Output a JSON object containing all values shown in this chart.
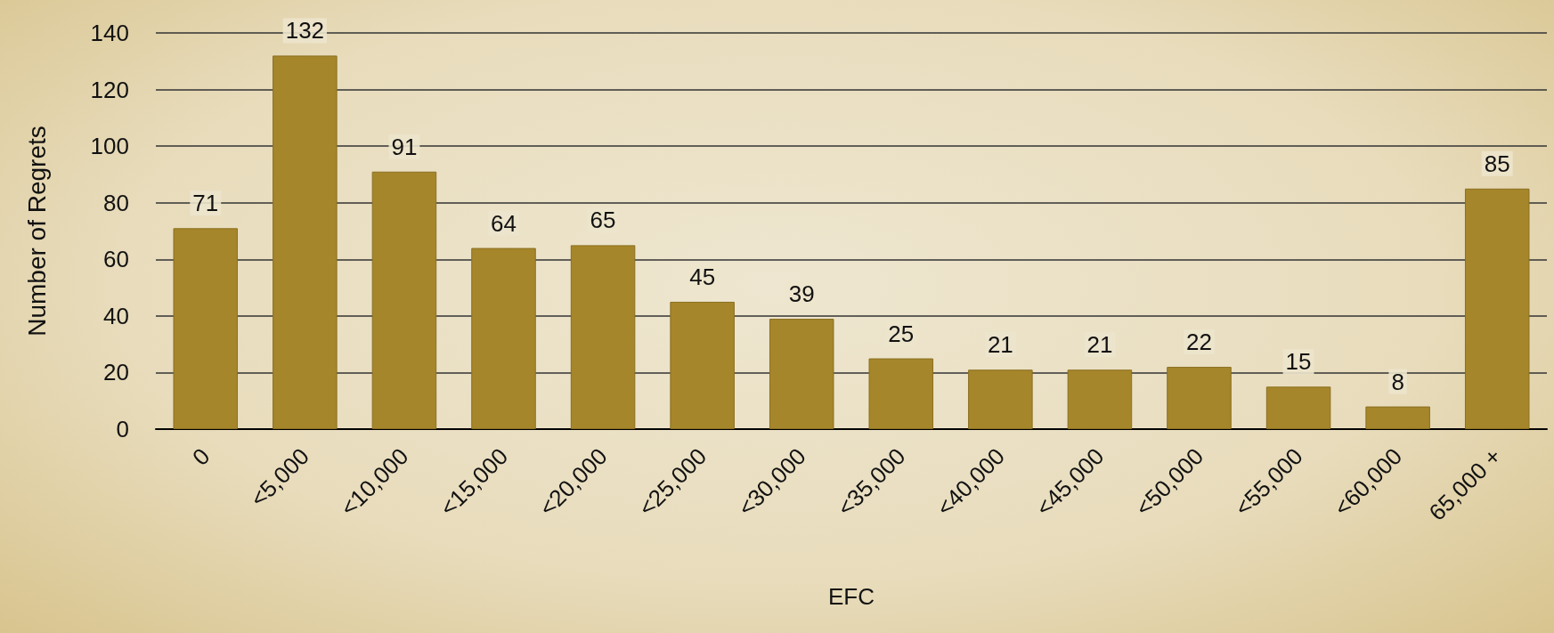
{
  "chart_data": {
    "type": "bar",
    "xlabel": "EFC",
    "ylabel": "Number of Regrets",
    "categories": [
      "0",
      "<5,000",
      "<10,000",
      "<15,000",
      "<20,000",
      "<25,000",
      "<30,000",
      "<35,000",
      "<40,000",
      "<45,000",
      "<50,000",
      "<55,000",
      "<60,000",
      "65,000 +"
    ],
    "values": [
      71,
      132,
      91,
      64,
      65,
      45,
      39,
      25,
      21,
      21,
      22,
      15,
      8,
      85
    ],
    "color": "#a6862a",
    "ylim": [
      0,
      140
    ],
    "yticks": [
      0,
      20,
      40,
      60,
      80,
      100,
      120,
      140
    ],
    "grid": "y",
    "data_labels": true
  }
}
